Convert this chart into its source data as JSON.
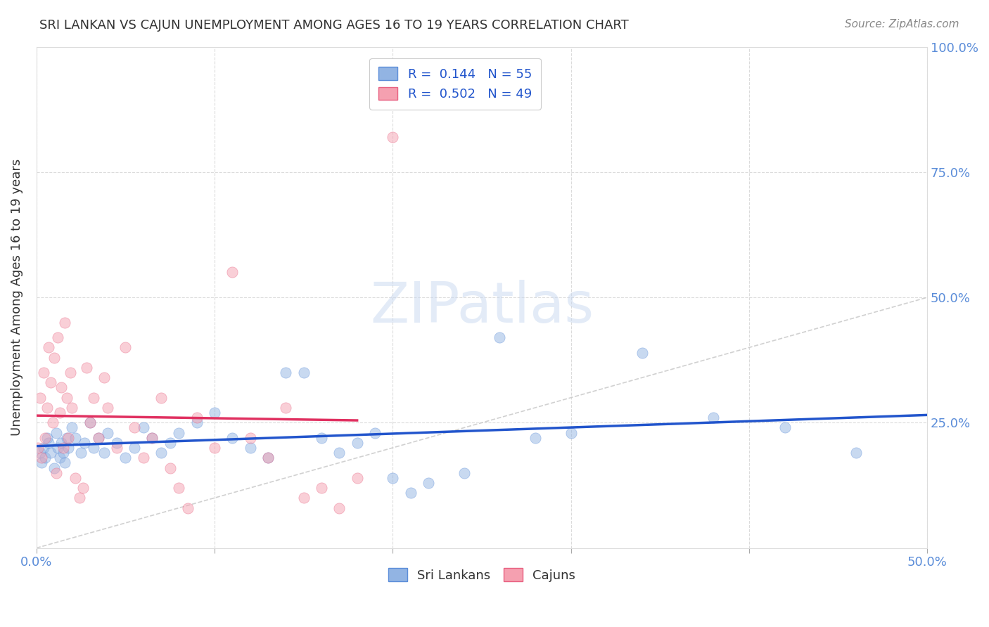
{
  "title": "SRI LANKAN VS CAJUN UNEMPLOYMENT AMONG AGES 16 TO 19 YEARS CORRELATION CHART",
  "source": "Source: ZipAtlas.com",
  "ylabel": "Unemployment Among Ages 16 to 19 years",
  "xlim": [
    0.0,
    0.5
  ],
  "ylim": [
    0.0,
    1.0
  ],
  "xticks": [
    0.0,
    0.1,
    0.2,
    0.3,
    0.4,
    0.5
  ],
  "yticks": [
    0.0,
    0.25,
    0.5,
    0.75,
    1.0
  ],
  "xticklabels": [
    "0.0%",
    "",
    "",
    "",
    "",
    "50.0%"
  ],
  "yticklabels": [
    "",
    "25.0%",
    "50.0%",
    "75.0%",
    "100.0%"
  ],
  "legend_entries": [
    {
      "label": "R =  0.144   N = 55",
      "color": "#92b4e3",
      "edge": "#5b8dd9"
    },
    {
      "label": "R =  0.502   N = 49",
      "color": "#f5a0b0",
      "edge": "#e86080"
    }
  ],
  "watermark": "ZIPatlas",
  "sri_lanka_points": [
    [
      0.002,
      0.19
    ],
    [
      0.003,
      0.17
    ],
    [
      0.004,
      0.2
    ],
    [
      0.005,
      0.18
    ],
    [
      0.006,
      0.22
    ],
    [
      0.007,
      0.21
    ],
    [
      0.008,
      0.19
    ],
    [
      0.01,
      0.16
    ],
    [
      0.011,
      0.23
    ],
    [
      0.012,
      0.2
    ],
    [
      0.013,
      0.18
    ],
    [
      0.014,
      0.21
    ],
    [
      0.015,
      0.19
    ],
    [
      0.016,
      0.17
    ],
    [
      0.017,
      0.22
    ],
    [
      0.018,
      0.2
    ],
    [
      0.02,
      0.24
    ],
    [
      0.022,
      0.22
    ],
    [
      0.025,
      0.19
    ],
    [
      0.027,
      0.21
    ],
    [
      0.03,
      0.25
    ],
    [
      0.032,
      0.2
    ],
    [
      0.035,
      0.22
    ],
    [
      0.038,
      0.19
    ],
    [
      0.04,
      0.23
    ],
    [
      0.045,
      0.21
    ],
    [
      0.05,
      0.18
    ],
    [
      0.055,
      0.2
    ],
    [
      0.06,
      0.24
    ],
    [
      0.065,
      0.22
    ],
    [
      0.07,
      0.19
    ],
    [
      0.075,
      0.21
    ],
    [
      0.08,
      0.23
    ],
    [
      0.09,
      0.25
    ],
    [
      0.1,
      0.27
    ],
    [
      0.11,
      0.22
    ],
    [
      0.12,
      0.2
    ],
    [
      0.13,
      0.18
    ],
    [
      0.14,
      0.35
    ],
    [
      0.15,
      0.35
    ],
    [
      0.16,
      0.22
    ],
    [
      0.17,
      0.19
    ],
    [
      0.18,
      0.21
    ],
    [
      0.19,
      0.23
    ],
    [
      0.2,
      0.14
    ],
    [
      0.21,
      0.11
    ],
    [
      0.22,
      0.13
    ],
    [
      0.24,
      0.15
    ],
    [
      0.26,
      0.42
    ],
    [
      0.28,
      0.22
    ],
    [
      0.3,
      0.23
    ],
    [
      0.34,
      0.39
    ],
    [
      0.38,
      0.26
    ],
    [
      0.42,
      0.24
    ],
    [
      0.46,
      0.19
    ]
  ],
  "cajun_points": [
    [
      0.001,
      0.2
    ],
    [
      0.002,
      0.3
    ],
    [
      0.003,
      0.18
    ],
    [
      0.004,
      0.35
    ],
    [
      0.005,
      0.22
    ],
    [
      0.006,
      0.28
    ],
    [
      0.007,
      0.4
    ],
    [
      0.008,
      0.33
    ],
    [
      0.009,
      0.25
    ],
    [
      0.01,
      0.38
    ],
    [
      0.011,
      0.15
    ],
    [
      0.012,
      0.42
    ],
    [
      0.013,
      0.27
    ],
    [
      0.014,
      0.32
    ],
    [
      0.015,
      0.2
    ],
    [
      0.016,
      0.45
    ],
    [
      0.017,
      0.3
    ],
    [
      0.018,
      0.22
    ],
    [
      0.019,
      0.35
    ],
    [
      0.02,
      0.28
    ],
    [
      0.022,
      0.14
    ],
    [
      0.024,
      0.1
    ],
    [
      0.026,
      0.12
    ],
    [
      0.028,
      0.36
    ],
    [
      0.03,
      0.25
    ],
    [
      0.032,
      0.3
    ],
    [
      0.035,
      0.22
    ],
    [
      0.038,
      0.34
    ],
    [
      0.04,
      0.28
    ],
    [
      0.045,
      0.2
    ],
    [
      0.05,
      0.4
    ],
    [
      0.055,
      0.24
    ],
    [
      0.06,
      0.18
    ],
    [
      0.065,
      0.22
    ],
    [
      0.07,
      0.3
    ],
    [
      0.075,
      0.16
    ],
    [
      0.08,
      0.12
    ],
    [
      0.085,
      0.08
    ],
    [
      0.09,
      0.26
    ],
    [
      0.1,
      0.2
    ],
    [
      0.11,
      0.55
    ],
    [
      0.12,
      0.22
    ],
    [
      0.13,
      0.18
    ],
    [
      0.14,
      0.28
    ],
    [
      0.15,
      0.1
    ],
    [
      0.16,
      0.12
    ],
    [
      0.17,
      0.08
    ],
    [
      0.18,
      0.14
    ],
    [
      0.2,
      0.82
    ]
  ],
  "diagonal_line": {
    "x": [
      0.0,
      1.0
    ],
    "y": [
      0.0,
      1.0
    ],
    "color": "#cccccc",
    "style": "--"
  },
  "sri_lanka_line_color": "#2255cc",
  "cajun_line_color": "#e03060",
  "background_color": "#ffffff",
  "grid_color": "#cccccc",
  "title_color": "#333333",
  "axis_color": "#5b8dd9",
  "marker_size": 120,
  "marker_alpha": 0.5
}
